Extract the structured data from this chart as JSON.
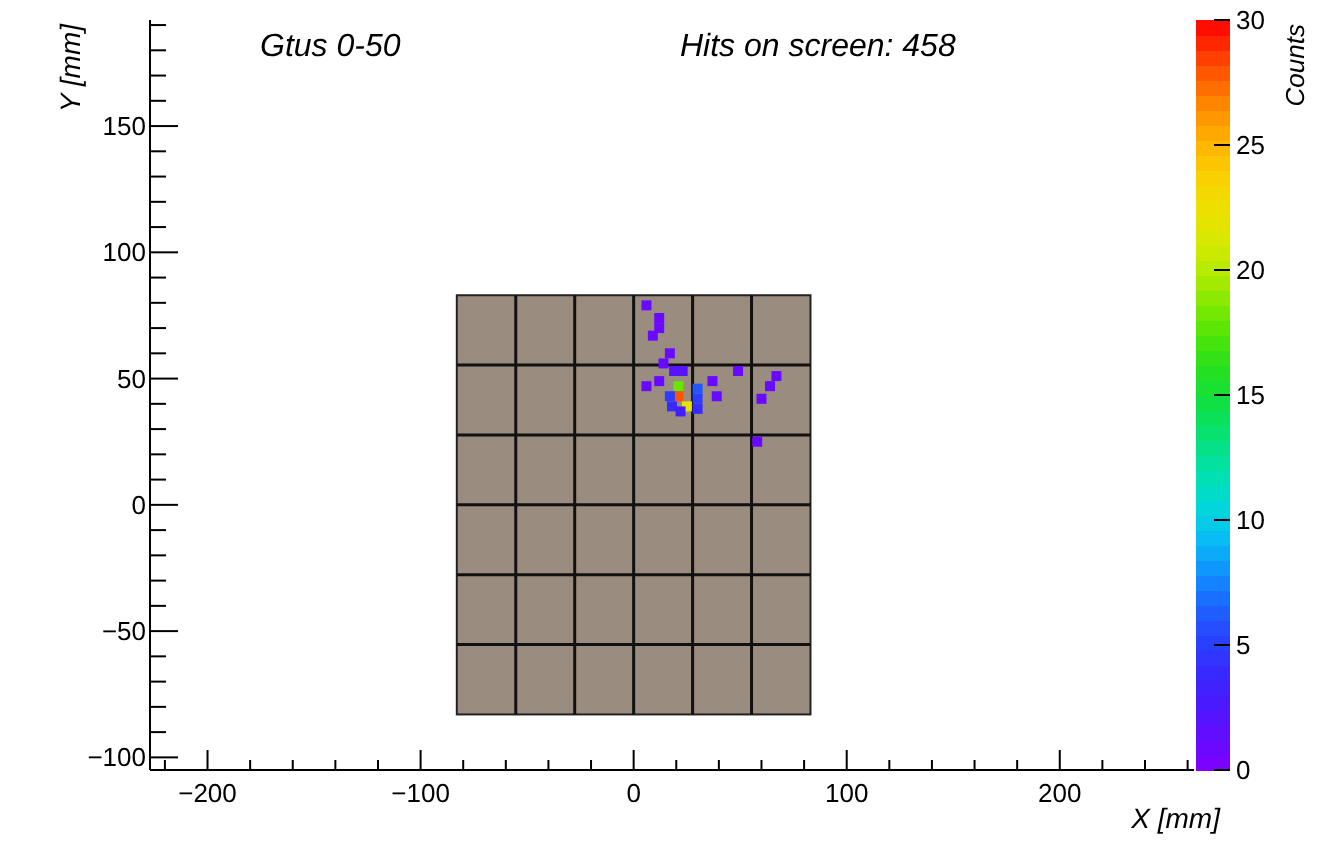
{
  "chart_data": {
    "type": "scatter",
    "title": "Gtus 0-50",
    "annotations": [
      "Hits on screen: 458"
    ],
    "xlabel": "X [mm]",
    "ylabel": "Y [mm]",
    "clabel": "Counts",
    "marker": "square",
    "grid": false,
    "x": [
      6,
      12,
      12,
      9,
      17,
      14,
      19,
      23,
      6,
      12,
      21,
      21,
      25,
      17,
      18,
      22,
      30,
      30,
      30,
      37,
      39,
      49,
      67,
      64,
      60,
      58
    ],
    "values": [
      79,
      74,
      70,
      67,
      60,
      56,
      53,
      53,
      47,
      49,
      47,
      43,
      39,
      43,
      39,
      37,
      46,
      42,
      38,
      49,
      43,
      53,
      51,
      47,
      42,
      25
    ],
    "cvalues": [
      1,
      1,
      1,
      1,
      1,
      1,
      2,
      2,
      1,
      1,
      18,
      28,
      22,
      5,
      4,
      3,
      6,
      5,
      4,
      1,
      1,
      1,
      1,
      1,
      1,
      1
    ],
    "clim": [
      0,
      30
    ],
    "cticks": [
      0,
      5,
      10,
      15,
      20,
      25,
      30
    ],
    "xlim": [
      -227,
      263
    ],
    "xticks": [
      {
        "value": -220,
        "label": null
      },
      -200,
      {
        "value": -180,
        "label": null
      },
      {
        "value": -160,
        "label": null
      },
      {
        "value": -140,
        "label": null
      },
      {
        "value": -120,
        "label": null
      },
      -100,
      {
        "value": -80,
        "label": null
      },
      {
        "value": -60,
        "label": null
      },
      {
        "value": -40,
        "label": null
      },
      {
        "value": -20,
        "label": null
      },
      0,
      {
        "value": 20,
        "label": null
      },
      {
        "value": 40,
        "label": null
      },
      {
        "value": 60,
        "label": null
      },
      {
        "value": 80,
        "label": null
      },
      100,
      {
        "value": 120,
        "label": null
      },
      {
        "value": 140,
        "label": null
      },
      {
        "value": 160,
        "label": null
      },
      {
        "value": 180,
        "label": null
      },
      200,
      {
        "value": 220,
        "label": null
      },
      {
        "value": 240,
        "label": null
      },
      {
        "value": 260,
        "label": null
      }
    ],
    "ylim": [
      -105,
      192
    ],
    "yticks": [
      -100,
      {
        "value": -90,
        "label": null
      },
      {
        "value": -80,
        "label": null
      },
      {
        "value": -70,
        "label": null
      },
      {
        "value": -60,
        "label": null
      },
      -50,
      {
        "value": -40,
        "label": null
      },
      {
        "value": -30,
        "label": null
      },
      {
        "value": -20,
        "label": null
      },
      {
        "value": -10,
        "label": null
      },
      0,
      {
        "value": 10,
        "label": null
      },
      {
        "value": 20,
        "label": null
      },
      {
        "value": 30,
        "label": null
      },
      {
        "value": 40,
        "label": null
      },
      50,
      {
        "value": 60,
        "label": null
      },
      {
        "value": 70,
        "label": null
      },
      {
        "value": 80,
        "label": null
      },
      {
        "value": 90,
        "label": null
      },
      100,
      {
        "value": 110,
        "label": null
      },
      {
        "value": 120,
        "label": null
      },
      {
        "value": 130,
        "label": null
      },
      {
        "value": 140,
        "label": null
      },
      150,
      {
        "value": 160,
        "label": null
      },
      {
        "value": 170,
        "label": null
      },
      {
        "value": 180,
        "label": null
      },
      {
        "value": 190,
        "label": null
      }
    ]
  }
}
